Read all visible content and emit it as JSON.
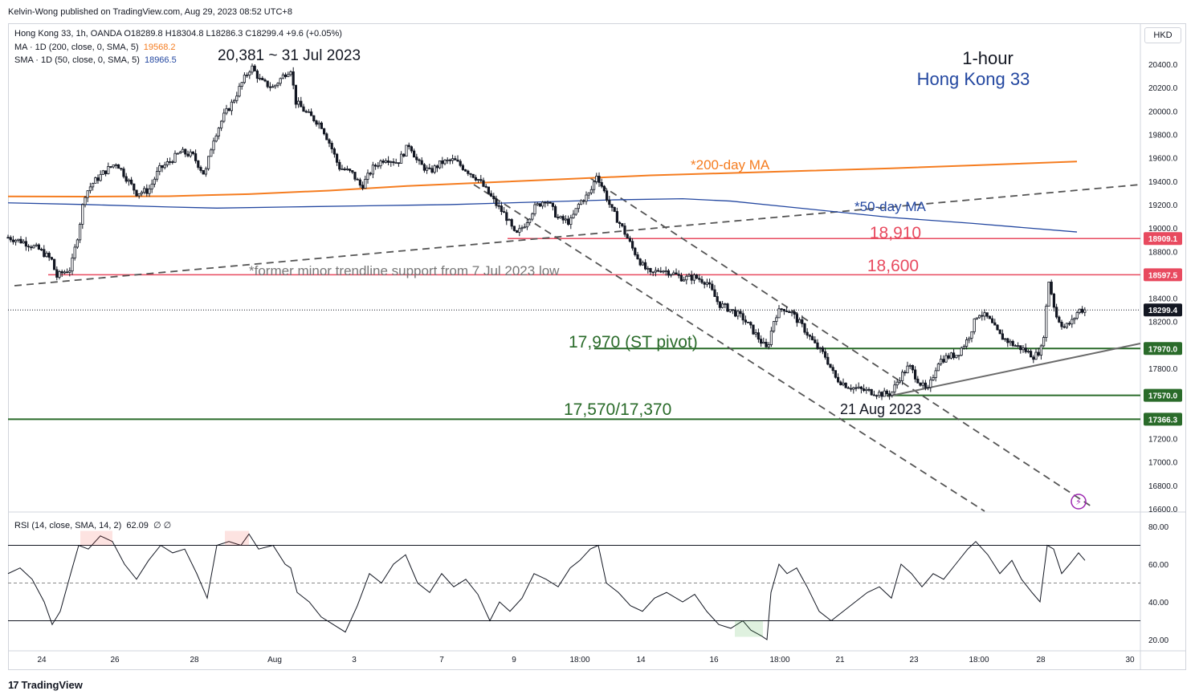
{
  "header": {
    "publisher_line": "Kelvin-Wong published on TradingView.com, Aug 29, 2023 08:52 UTC+8",
    "currency": "HKD",
    "footer_brand": "TradingView"
  },
  "legend": {
    "main": "Hong Kong 33, 1h, OANDA  O18289.8  H18304.8  L18286.3  C18299.4  +9.6 (+0.05%)",
    "ma_label": "MA · 1D (200, close, 0, SMA, 5)",
    "ma_value": "19568.2",
    "sma_label": "SMA · 1D (50, close, 0, SMA, 5)",
    "sma_value": "18966.5",
    "rsi_label": "RSI (14, close, SMA, 14, 2)",
    "rsi_value": "62.09",
    "rsi_extra": "∅  ∅"
  },
  "colors": {
    "up": "#ffffff",
    "down": "#131722",
    "ma200": "#f57c1f",
    "sma50": "#2347a0",
    "resistance": "#e84a5f",
    "support": "#2a6b2a",
    "dashed": "#555555",
    "rsi_line": "#131722",
    "axis_text": "#131722"
  },
  "chart_data": {
    "type": "candlestick",
    "symbol": "Hong Kong 33",
    "timeframe": "1-hour",
    "y_axis": {
      "range": [
        16600,
        20600
      ],
      "ticks": [
        "20400.0",
        "20200.0",
        "20000.0",
        "19800.0",
        "19600.0",
        "19400.0",
        "19200.0",
        "19000.0",
        "18800.0",
        "18600.0",
        "18400.0",
        "18200.0",
        "18000.0",
        "17800.0",
        "17600.0",
        "17400.0",
        "17200.0",
        "17000.0",
        "16800.0",
        "16600.0"
      ]
    },
    "x_axis": {
      "ticks": [
        "24",
        "26",
        "28",
        "Aug",
        "3",
        "7",
        "9",
        "18:00",
        "14",
        "16",
        "18:00",
        "21",
        "23",
        "18:00",
        "28",
        "30"
      ]
    },
    "price_path": [
      [
        0,
        18920
      ],
      [
        20,
        18880
      ],
      [
        40,
        18810
      ],
      [
        55,
        18720
      ],
      [
        60,
        18580
      ],
      [
        68,
        18620
      ],
      [
        78,
        18650
      ],
      [
        88,
        18980
      ],
      [
        95,
        19280
      ],
      [
        105,
        19380
      ],
      [
        120,
        19480
      ],
      [
        135,
        19560
      ],
      [
        148,
        19420
      ],
      [
        160,
        19300
      ],
      [
        175,
        19320
      ],
      [
        188,
        19500
      ],
      [
        200,
        19560
      ],
      [
        215,
        19650
      ],
      [
        230,
        19620
      ],
      [
        245,
        19450
      ],
      [
        255,
        19750
      ],
      [
        268,
        19950
      ],
      [
        280,
        20080
      ],
      [
        292,
        20250
      ],
      [
        303,
        20381
      ],
      [
        315,
        20250
      ],
      [
        330,
        20200
      ],
      [
        345,
        20320
      ],
      [
        352,
        20360
      ],
      [
        358,
        20080
      ],
      [
        372,
        19980
      ],
      [
        390,
        19880
      ],
      [
        402,
        19700
      ],
      [
        412,
        19520
      ],
      [
        428,
        19470
      ],
      [
        440,
        19350
      ],
      [
        455,
        19520
      ],
      [
        470,
        19600
      ],
      [
        485,
        19560
      ],
      [
        500,
        19720
      ],
      [
        510,
        19560
      ],
      [
        525,
        19480
      ],
      [
        540,
        19560
      ],
      [
        555,
        19580
      ],
      [
        570,
        19500
      ],
      [
        585,
        19420
      ],
      [
        598,
        19300
      ],
      [
        608,
        19200
      ],
      [
        620,
        19100
      ],
      [
        632,
        18930
      ],
      [
        645,
        19050
      ],
      [
        655,
        19170
      ],
      [
        670,
        19250
      ],
      [
        685,
        19080
      ],
      [
        700,
        19050
      ],
      [
        712,
        19220
      ],
      [
        725,
        19300
      ],
      [
        733,
        19460
      ],
      [
        740,
        19350
      ],
      [
        752,
        19150
      ],
      [
        765,
        19000
      ],
      [
        778,
        18820
      ],
      [
        790,
        18680
      ],
      [
        800,
        18600
      ],
      [
        812,
        18650
      ],
      [
        825,
        18620
      ],
      [
        840,
        18570
      ],
      [
        855,
        18580
      ],
      [
        870,
        18540
      ],
      [
        885,
        18350
      ],
      [
        900,
        18300
      ],
      [
        915,
        18230
      ],
      [
        930,
        18100
      ],
      [
        945,
        17960
      ],
      [
        955,
        18250
      ],
      [
        965,
        18320
      ],
      [
        975,
        18280
      ],
      [
        990,
        18150
      ],
      [
        1005,
        18000
      ],
      [
        1018,
        17900
      ],
      [
        1030,
        17720
      ],
      [
        1045,
        17650
      ],
      [
        1060,
        17620
      ],
      [
        1075,
        17600
      ],
      [
        1090,
        17580
      ],
      [
        1100,
        17590
      ],
      [
        1110,
        17720
      ],
      [
        1122,
        17820
      ],
      [
        1135,
        17680
      ],
      [
        1145,
        17600
      ],
      [
        1158,
        17860
      ],
      [
        1170,
        17900
      ],
      [
        1182,
        17920
      ],
      [
        1195,
        18050
      ],
      [
        1208,
        18280
      ],
      [
        1220,
        18230
      ],
      [
        1235,
        18080
      ],
      [
        1250,
        18010
      ],
      [
        1265,
        17960
      ],
      [
        1278,
        17900
      ],
      [
        1288,
        17980
      ],
      [
        1296,
        18550
      ],
      [
        1305,
        18250
      ],
      [
        1315,
        18150
      ],
      [
        1325,
        18200
      ],
      [
        1333,
        18300
      ],
      [
        1341,
        18299
      ]
    ],
    "series": [
      {
        "name": "*200-day MA",
        "path": [
          [
            0,
            19270
          ],
          [
            100,
            19268
          ],
          [
            200,
            19272
          ],
          [
            300,
            19290
          ],
          [
            400,
            19320
          ],
          [
            500,
            19360
          ],
          [
            600,
            19390
          ],
          [
            700,
            19420
          ],
          [
            800,
            19450
          ],
          [
            900,
            19470
          ],
          [
            1000,
            19490
          ],
          [
            1100,
            19510
          ],
          [
            1200,
            19535
          ],
          [
            1331,
            19568
          ]
        ]
      },
      {
        "name": "*50-day MA",
        "path": [
          [
            0,
            19215
          ],
          [
            100,
            19200
          ],
          [
            200,
            19180
          ],
          [
            260,
            19170
          ],
          [
            350,
            19180
          ],
          [
            450,
            19190
          ],
          [
            550,
            19200
          ],
          [
            650,
            19220
          ],
          [
            750,
            19240
          ],
          [
            840,
            19250
          ],
          [
            900,
            19230
          ],
          [
            1000,
            19160
          ],
          [
            1100,
            19090
          ],
          [
            1200,
            19040
          ],
          [
            1331,
            18966
          ]
        ]
      }
    ],
    "rsi": {
      "range": [
        15,
        85
      ],
      "ticks": [
        "80.00",
        "60.00",
        "40.00",
        "20.00"
      ],
      "upper": 70,
      "middle": 50,
      "lower": 30,
      "path": [
        [
          0,
          55
        ],
        [
          15,
          58
        ],
        [
          30,
          52
        ],
        [
          45,
          40
        ],
        [
          55,
          28
        ],
        [
          65,
          35
        ],
        [
          78,
          55
        ],
        [
          88,
          70
        ],
        [
          100,
          68
        ],
        [
          115,
          75
        ],
        [
          130,
          72
        ],
        [
          145,
          60
        ],
        [
          160,
          52
        ],
        [
          175,
          62
        ],
        [
          190,
          70
        ],
        [
          205,
          66
        ],
        [
          220,
          68
        ],
        [
          235,
          55
        ],
        [
          248,
          42
        ],
        [
          260,
          70
        ],
        [
          275,
          72
        ],
        [
          290,
          70
        ],
        [
          300,
          76
        ],
        [
          312,
          68
        ],
        [
          330,
          70
        ],
        [
          345,
          60
        ],
        [
          352,
          58
        ],
        [
          360,
          45
        ],
        [
          375,
          40
        ],
        [
          390,
          32
        ],
        [
          405,
          28
        ],
        [
          420,
          24
        ],
        [
          435,
          38
        ],
        [
          450,
          55
        ],
        [
          465,
          50
        ],
        [
          480,
          60
        ],
        [
          495,
          65
        ],
        [
          510,
          50
        ],
        [
          525,
          45
        ],
        [
          540,
          55
        ],
        [
          555,
          48
        ],
        [
          570,
          52
        ],
        [
          585,
          44
        ],
        [
          600,
          30
        ],
        [
          612,
          40
        ],
        [
          625,
          35
        ],
        [
          640,
          42
        ],
        [
          655,
          55
        ],
        [
          670,
          52
        ],
        [
          685,
          48
        ],
        [
          700,
          58
        ],
        [
          712,
          62
        ],
        [
          725,
          68
        ],
        [
          735,
          70
        ],
        [
          745,
          50
        ],
        [
          760,
          45
        ],
        [
          775,
          38
        ],
        [
          790,
          35
        ],
        [
          805,
          42
        ],
        [
          820,
          45
        ],
        [
          840,
          40
        ],
        [
          855,
          44
        ],
        [
          870,
          35
        ],
        [
          885,
          28
        ],
        [
          900,
          26
        ],
        [
          915,
          30
        ],
        [
          925,
          25
        ],
        [
          938,
          22
        ],
        [
          945,
          20
        ],
        [
          950,
          45
        ],
        [
          960,
          60
        ],
        [
          970,
          55
        ],
        [
          982,
          58
        ],
        [
          995,
          48
        ],
        [
          1010,
          35
        ],
        [
          1025,
          30
        ],
        [
          1040,
          35
        ],
        [
          1055,
          40
        ],
        [
          1070,
          45
        ],
        [
          1085,
          48
        ],
        [
          1100,
          42
        ],
        [
          1112,
          60
        ],
        [
          1125,
          55
        ],
        [
          1138,
          48
        ],
        [
          1152,
          55
        ],
        [
          1165,
          52
        ],
        [
          1180,
          60
        ],
        [
          1195,
          68
        ],
        [
          1205,
          72
        ],
        [
          1220,
          65
        ],
        [
          1235,
          55
        ],
        [
          1250,
          62
        ],
        [
          1262,
          52
        ],
        [
          1275,
          45
        ],
        [
          1285,
          40
        ],
        [
          1294,
          70
        ],
        [
          1302,
          68
        ],
        [
          1312,
          55
        ],
        [
          1322,
          60
        ],
        [
          1333,
          66
        ],
        [
          1341,
          62
        ]
      ]
    },
    "levels": [
      {
        "label": "18,910",
        "value": 18910,
        "badge": "18909.1",
        "color": "resistance"
      },
      {
        "label": "18,600",
        "value": 18600,
        "badge": "18597.5",
        "color": "resistance"
      },
      {
        "label": "17,970 (ST pivot)",
        "value": 17970,
        "badge": "17970.0",
        "color": "support"
      },
      {
        "label": "",
        "value": 17570,
        "badge": "17570.0",
        "color": "support"
      },
      {
        "label": "17,570/17,370",
        "value": 17366,
        "badge": "17366.3",
        "color": "support"
      }
    ],
    "last_price": {
      "value": 18299.4,
      "badge": "18299.4"
    },
    "annotations": {
      "title": "1-hour",
      "subtitle": "Hong Kong 33",
      "high_label": "20,381 ~ 31 Jul 2023",
      "low_label": "21 Aug 2023",
      "ma200_label": "*200-day MA",
      "sma50_label": "*50-day MA",
      "trendline_label": "*former minor trendline support from 7 Jul 2023 low"
    },
    "grid": false,
    "legend": "top-left"
  }
}
